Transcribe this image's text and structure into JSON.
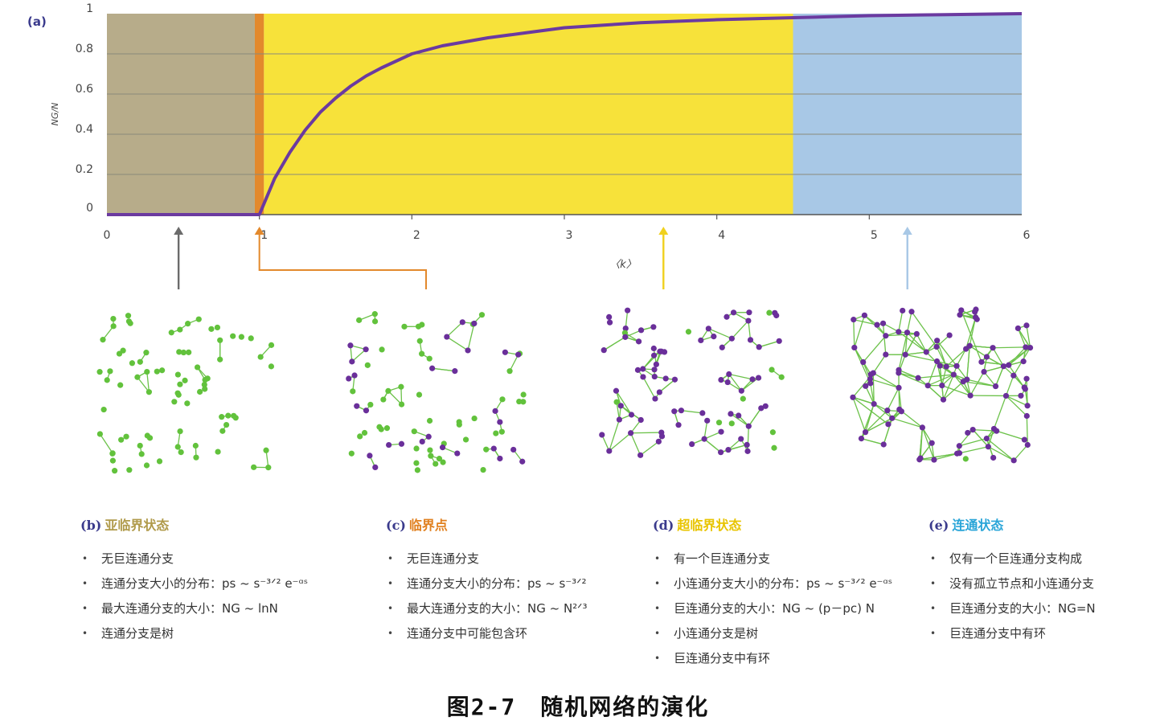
{
  "chart_data": {
    "type": "area",
    "panel_label": "(a)",
    "ylabel": "NG/N",
    "xlabel": "〈k〉",
    "xlim": [
      0,
      6
    ],
    "ylim": [
      0,
      1
    ],
    "x_ticks": [
      "0",
      "1",
      "2",
      "3",
      "4",
      "5",
      "6"
    ],
    "y_ticks": [
      "0",
      "0.2",
      "0.4",
      "0.6",
      "0.8",
      "1"
    ],
    "grid": true,
    "regions": [
      {
        "name": "亚临界状态",
        "from": 0,
        "to": 0.97,
        "color": "#b7ac8a"
      },
      {
        "name": "临界点",
        "from": 0.97,
        "to": 1.03,
        "color": "#e3892c"
      },
      {
        "name": "超临界状态",
        "from": 1.03,
        "to": 4.5,
        "color": "#f7e23a"
      },
      {
        "name": "连通状态",
        "from": 4.5,
        "to": 6,
        "color": "#a8c8e6"
      }
    ],
    "series": [
      {
        "x": [
          0,
          0.5,
          1.0,
          1.1,
          1.2,
          1.3,
          1.4,
          1.5,
          1.6,
          1.7,
          1.8,
          2.0,
          2.2,
          2.5,
          3.0,
          3.5,
          4.0,
          4.5,
          5.0,
          6.0
        ],
        "values": [
          0,
          0,
          0,
          0.18,
          0.31,
          0.42,
          0.51,
          0.58,
          0.64,
          0.69,
          0.73,
          0.8,
          0.84,
          0.88,
          0.93,
          0.955,
          0.97,
          0.98,
          0.99,
          1.0
        ],
        "color": "#6b3aa0"
      }
    ],
    "markers": [
      {
        "x": 0.47,
        "color": "#6b6b6b"
      },
      {
        "x": 1.0,
        "color": "#e3892c"
      },
      {
        "x": 3.65,
        "color": "#f0d11e"
      },
      {
        "x": 5.25,
        "color": "#a8c8e6"
      }
    ]
  },
  "legends": [
    {
      "tag": "(b)",
      "title": "亚临界状态",
      "color": "#b09a4a",
      "items": [
        "无巨连通分支",
        "连通分支大小的分布：ps ~ s⁻³ᐟ² e⁻ᵅˢ",
        "最大连通分支的大小：NG ~ lnN",
        "连通分支是树"
      ]
    },
    {
      "tag": "(c)",
      "title": "临界点",
      "color": "#e0801f",
      "items": [
        "无巨连通分支",
        "连通分支大小的分布：ps ~ s⁻³ᐟ²",
        "最大连通分支的大小：NG ~ N²ᐟ³",
        "连通分支中可能包含环"
      ]
    },
    {
      "tag": "(d)",
      "title": "超临界状态",
      "color": "#e8c400",
      "items": [
        "有一个巨连通分支",
        "小连通分支大小的分布：ps ~ s⁻³ᐟ² e⁻ᵅˢ",
        "巨连通分支的大小：NG ~ (p－pc) N",
        "小连通分支是树",
        "巨连通分支中有环"
      ]
    },
    {
      "tag": "(e)",
      "title": "连通状态",
      "color": "#2aa5d8",
      "items": [
        "仅有一个巨连通分支构成",
        "没有孤立节点和小连通分支",
        "巨连通分支的大小：NG=N",
        "巨连通分支中有环"
      ]
    }
  ],
  "networks": {
    "node_green": "#62c23c",
    "node_purple": "#6a2f9a",
    "edge_color": "#6cc24a"
  },
  "caption": "图2-7　随机网络的演化"
}
